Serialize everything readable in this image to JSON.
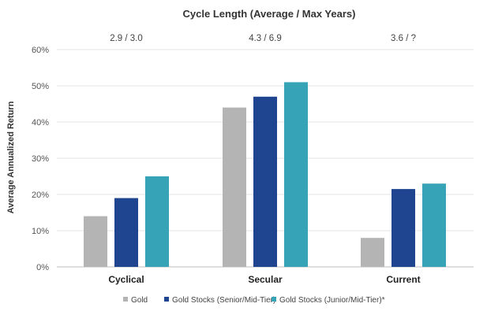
{
  "chart_data": {
    "type": "bar",
    "title": "Cycle Length (Average / Max Years)",
    "ylabel": "Average Annualized Return",
    "xlabel": "",
    "ylim": [
      0,
      60
    ],
    "yticks": [
      "0%",
      "10%",
      "20%",
      "30%",
      "40%",
      "50%",
      "60%"
    ],
    "grid": true,
    "legend_position": "bottom",
    "categories": [
      "Cyclical",
      "Secular",
      "Current"
    ],
    "cycle_lengths": [
      "2.9 / 3.0",
      "4.3 / 6.9",
      "3.6 / ?"
    ],
    "series": [
      {
        "name": "Gold",
        "values": [
          14,
          44,
          8
        ],
        "color": "#b4b4b4"
      },
      {
        "name": "Gold Stocks (Senior/Mid-Tier)",
        "values": [
          19,
          47,
          21.5
        ],
        "color": "#1f4591"
      },
      {
        "name": "Gold Stocks (Junior/Mid-Tier)*",
        "values": [
          25,
          51,
          23
        ],
        "color": "#36a3b6"
      }
    ]
  }
}
